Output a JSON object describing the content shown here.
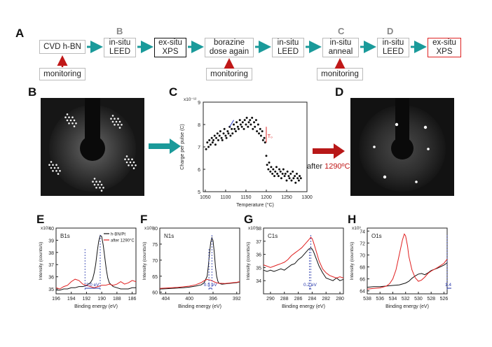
{
  "panel_labels": {
    "A": "A",
    "B": "B",
    "C": "C",
    "D": "D",
    "E": "E",
    "F": "F",
    "G": "G",
    "H": "H"
  },
  "flow": {
    "steps": [
      {
        "label": "CVD h-BN",
        "style": "normal",
        "step_label": ""
      },
      {
        "label": "in-situ\nLEED",
        "style": "normal",
        "step_label": "B"
      },
      {
        "label": "ex-situ\nXPS",
        "style": "dark",
        "step_label": ""
      },
      {
        "label": "borazine\ndose again",
        "style": "normal",
        "step_label": ""
      },
      {
        "label": "in-situ\nLEED",
        "style": "normal",
        "step_label": ""
      },
      {
        "label": "in-situ\nanneal",
        "style": "normal",
        "step_label": "C"
      },
      {
        "label": "in-situ\nLEED",
        "style": "normal",
        "step_label": "D"
      },
      {
        "label": "ex-situ\nXPS",
        "style": "red",
        "step_label": ""
      }
    ],
    "monitoring": [
      "monitoring",
      "monitoring",
      "monitoring"
    ],
    "colors": {
      "arrow": "#1a9a9a",
      "red_arrow": "#c01818"
    }
  },
  "middle": {
    "after_text": "after ",
    "after_temp": "1290ºC"
  },
  "chart_data": [
    {
      "panel": "C",
      "type": "scatter",
      "ylabel": "Charge per pulse (C)",
      "xlabel": "Temperature (°C)",
      "xlim": [
        1045,
        1300
      ],
      "ylim": [
        5,
        9
      ],
      "exponent": "x10⁻¹²",
      "yticks": [
        "9",
        "8",
        "7",
        "6",
        "5"
      ],
      "xticks": [
        "1050",
        "1100",
        "1150",
        "1200",
        "1250",
        "1300"
      ],
      "annotation": "T₀",
      "x": [
        1052,
        1055,
        1058,
        1060,
        1063,
        1066,
        1068,
        1070,
        1073,
        1075,
        1077,
        1080,
        1082,
        1085,
        1087,
        1090,
        1092,
        1095,
        1097,
        1100,
        1102,
        1105,
        1107,
        1110,
        1112,
        1115,
        1117,
        1120,
        1122,
        1125,
        1127,
        1130,
        1132,
        1135,
        1137,
        1140,
        1142,
        1145,
        1147,
        1150,
        1152,
        1155,
        1157,
        1160,
        1162,
        1165,
        1167,
        1170,
        1172,
        1175,
        1177,
        1180,
        1182,
        1185,
        1187,
        1190,
        1192,
        1195,
        1197,
        1200,
        1202,
        1205,
        1207,
        1210,
        1212,
        1215,
        1217,
        1220,
        1222,
        1225,
        1227,
        1230,
        1232,
        1235,
        1237,
        1240,
        1242,
        1245,
        1247,
        1250,
        1252,
        1255,
        1257,
        1260,
        1262,
        1265,
        1267,
        1270,
        1272,
        1275,
        1277,
        1280,
        1282,
        1285
      ],
      "y": [
        6.9,
        7.2,
        7.0,
        7.3,
        7.1,
        7.4,
        7.2,
        7.3,
        7.5,
        7.1,
        7.4,
        7.6,
        7.3,
        7.5,
        7.7,
        7.4,
        7.3,
        7.6,
        7.8,
        7.5,
        7.4,
        7.7,
        7.6,
        7.9,
        7.5,
        7.8,
        7.6,
        8.0,
        7.8,
        7.7,
        8.1,
        7.9,
        7.8,
        8.2,
        8.0,
        7.9,
        8.1,
        7.8,
        8.2,
        8.0,
        8.3,
        7.9,
        8.1,
        8.2,
        8.0,
        8.3,
        7.8,
        8.1,
        7.9,
        8.2,
        7.7,
        8.0,
        7.6,
        7.8,
        7.5,
        7.7,
        7.3,
        7.4,
        7.2,
        6.6,
        6.2,
        6.0,
        6.3,
        5.9,
        6.1,
        5.8,
        6.0,
        5.7,
        5.9,
        6.1,
        5.8,
        5.7,
        6.0,
        5.9,
        5.6,
        5.8,
        6.0,
        5.7,
        5.8,
        5.5,
        5.9,
        5.7,
        5.6,
        5.8,
        5.5,
        5.9,
        5.6,
        5.7,
        5.4,
        5.8,
        5.6,
        5.5,
        5.7,
        5.6
      ]
    },
    {
      "panel": "E",
      "type": "line",
      "title": "B1s",
      "ylabel": "Intensity (counts/s)",
      "xlabel": "Binding energy (eV)",
      "xlim": [
        196,
        185.5
      ],
      "ylim": [
        34.6,
        40
      ],
      "exponent": "x10³",
      "yticks": [
        "40",
        "39",
        "38",
        "37",
        "36",
        "35"
      ],
      "xticks": [
        "196",
        "194",
        "192",
        "190",
        "188",
        "186"
      ],
      "legend": [
        "h-BN/Pt",
        "after 1290°C"
      ],
      "shift_label": "2.0 eV",
      "series": [
        {
          "name": "h-BN/Pt",
          "color": "#111111",
          "x": [
            196,
            195.5,
            195,
            194.5,
            194,
            193.5,
            193,
            192.5,
            192,
            191.5,
            191.2,
            191,
            190.8,
            190.6,
            190.4,
            190.2,
            190,
            189.8,
            189.6,
            189.4,
            189.2,
            189,
            188.5,
            188,
            187.5,
            187,
            186.5,
            186,
            185.5
          ],
          "y": [
            34.9,
            34.9,
            35.0,
            35.0,
            35.1,
            35.1,
            35.2,
            35.2,
            35.3,
            35.5,
            35.8,
            36.3,
            37.0,
            38.0,
            38.9,
            39.4,
            39.3,
            38.6,
            37.6,
            36.6,
            35.9,
            35.5,
            35.2,
            35.1,
            35.0,
            35.0,
            35.0,
            35.1,
            35.1
          ]
        },
        {
          "name": "after 1290°C",
          "color": "#e02020",
          "x": [
            196,
            195.5,
            195,
            194.5,
            194,
            193.5,
            193,
            192.5,
            192,
            191.5,
            191,
            190.5,
            190,
            189.5,
            189,
            188.5,
            188,
            187.5,
            187,
            186.5,
            186,
            185.5
          ],
          "y": [
            35.1,
            35.0,
            35.2,
            35.3,
            35.6,
            35.8,
            35.7,
            35.4,
            35.3,
            35.2,
            35.1,
            35.2,
            35.3,
            35.3,
            35.4,
            35.3,
            35.4,
            35.6,
            35.4,
            35.5,
            35.7,
            35.6
          ]
        }
      ]
    },
    {
      "panel": "F",
      "type": "line",
      "title": "N1s",
      "ylabel": "Intensity (counts/s)",
      "xlabel": "Binding energy (eV)",
      "xlim": [
        405,
        391.5
      ],
      "ylim": [
        59.5,
        80
      ],
      "exponent": "x10³",
      "yticks": [
        "80",
        "75",
        "70",
        "65",
        "60"
      ],
      "xticks": [
        "404",
        "400",
        "396",
        "392"
      ],
      "shift_label": "0.5 eV",
      "series": [
        {
          "name": "h-BN/Pt",
          "color": "#111111",
          "x": [
            405,
            404,
            403,
            402,
            401,
            400,
            399,
            398,
            397.5,
            397,
            396.8,
            396.6,
            396.4,
            396.2,
            396,
            395.8,
            395.6,
            395.4,
            395.2,
            395,
            394.5,
            394,
            393,
            392,
            391.5
          ],
          "y": [
            61.0,
            61.1,
            61.2,
            61.3,
            61.4,
            61.6,
            61.9,
            62.3,
            63.0,
            65.0,
            68.0,
            72.0,
            75.5,
            77.0,
            76.0,
            72.5,
            68.0,
            65.0,
            63.5,
            62.8,
            62.5,
            62.6,
            62.8,
            63.0,
            63.2
          ]
        },
        {
          "name": "after 1290°C",
          "color": "#e02020",
          "x": [
            405,
            404,
            403,
            402,
            401,
            400,
            399,
            398,
            397.5,
            397,
            396.5,
            396,
            395.5,
            395,
            394,
            393,
            392,
            391.5
          ],
          "y": [
            61.2,
            61.3,
            61.4,
            61.5,
            61.7,
            61.9,
            62.3,
            63.0,
            63.6,
            64.0,
            63.8,
            63.4,
            63.0,
            62.8,
            62.7,
            62.9,
            63.1,
            63.3
          ]
        }
      ]
    },
    {
      "panel": "G",
      "type": "line",
      "title": "C1s",
      "ylabel": "Intensity (counts/s)",
      "xlabel": "Binding energy (eV)",
      "xlim": [
        291,
        279.5
      ],
      "ylim": [
        33,
        38
      ],
      "exponent": "x10³",
      "yticks": [
        "38",
        "37",
        "36",
        "35",
        "34"
      ],
      "xticks": [
        "290",
        "288",
        "286",
        "284",
        "282",
        "280"
      ],
      "shift_label": "0.2 eV",
      "series": [
        {
          "name": "h-BN/Pt",
          "color": "#111111",
          "x": [
            291,
            290.5,
            290,
            289.5,
            289,
            288.5,
            288,
            287.5,
            287,
            286.5,
            286,
            285.5,
            285,
            284.5,
            284.2,
            284,
            283.8,
            283.5,
            283,
            282.5,
            282,
            281.5,
            281,
            280.5,
            280,
            279.5
          ],
          "y": [
            34.8,
            34.7,
            34.8,
            34.7,
            34.8,
            34.9,
            34.8,
            35.0,
            35.2,
            35.3,
            35.6,
            35.8,
            36.1,
            36.4,
            36.5,
            36.4,
            36.2,
            35.8,
            35.1,
            34.6,
            34.2,
            34.1,
            34.0,
            34.2,
            34.0,
            34.1
          ]
        },
        {
          "name": "after 1290°C",
          "color": "#e02020",
          "x": [
            291,
            290.5,
            290,
            289.5,
            289,
            288.5,
            288,
            287.5,
            287,
            286.5,
            286,
            285.5,
            285,
            284.5,
            284.2,
            284,
            283.8,
            283.5,
            283,
            282.5,
            282,
            281.5,
            281,
            280.5,
            280,
            279.5
          ],
          "y": [
            35.2,
            35.1,
            35.0,
            35.1,
            35.2,
            35.3,
            35.4,
            35.6,
            35.9,
            36.1,
            36.3,
            36.5,
            36.8,
            37.1,
            37.3,
            37.2,
            36.9,
            36.4,
            35.5,
            34.9,
            34.6,
            34.4,
            34.3,
            34.2,
            34.3,
            34.2
          ]
        }
      ]
    },
    {
      "panel": "H",
      "type": "line",
      "title": "O1s",
      "ylabel": "Intensity (counts/s)",
      "xlabel": "Binding energy (eV)",
      "xlim": [
        538,
        525.5
      ],
      "ylim": [
        63.5,
        74.5
      ],
      "exponent": "x10³",
      "yticks": [
        "74",
        "72",
        "70",
        "68",
        "66",
        "64"
      ],
      "xticks": [
        "538",
        "536",
        "534",
        "532",
        "530",
        "528",
        "526"
      ],
      "shift_label": "1.4 eV",
      "series": [
        {
          "name": "h-BN/Pt",
          "color": "#111111",
          "x": [
            538,
            537,
            536,
            535,
            534,
            533,
            532,
            531.5,
            531,
            530.5,
            530,
            529.5,
            529,
            528.5,
            528,
            527,
            526,
            525.5
          ],
          "y": [
            64.6,
            64.7,
            64.7,
            64.8,
            64.9,
            65.0,
            65.3,
            65.6,
            66.1,
            66.5,
            66.8,
            66.9,
            66.7,
            67.0,
            67.4,
            67.8,
            68.3,
            68.7
          ]
        },
        {
          "name": "after 1290°C",
          "color": "#e02020",
          "x": [
            538,
            537,
            536,
            535,
            534.5,
            534,
            533.5,
            533,
            532.5,
            532.2,
            532,
            531.7,
            531.5,
            531,
            530.5,
            530,
            529.5,
            529,
            528.5,
            528,
            527,
            526,
            525.5
          ],
          "y": [
            64.3,
            64.4,
            64.5,
            64.8,
            65.2,
            66.0,
            67.5,
            70.0,
            72.5,
            73.5,
            73.2,
            71.5,
            69.8,
            67.5,
            66.2,
            65.6,
            65.8,
            66.3,
            66.9,
            67.3,
            67.9,
            68.6,
            69.3
          ]
        }
      ]
    }
  ]
}
